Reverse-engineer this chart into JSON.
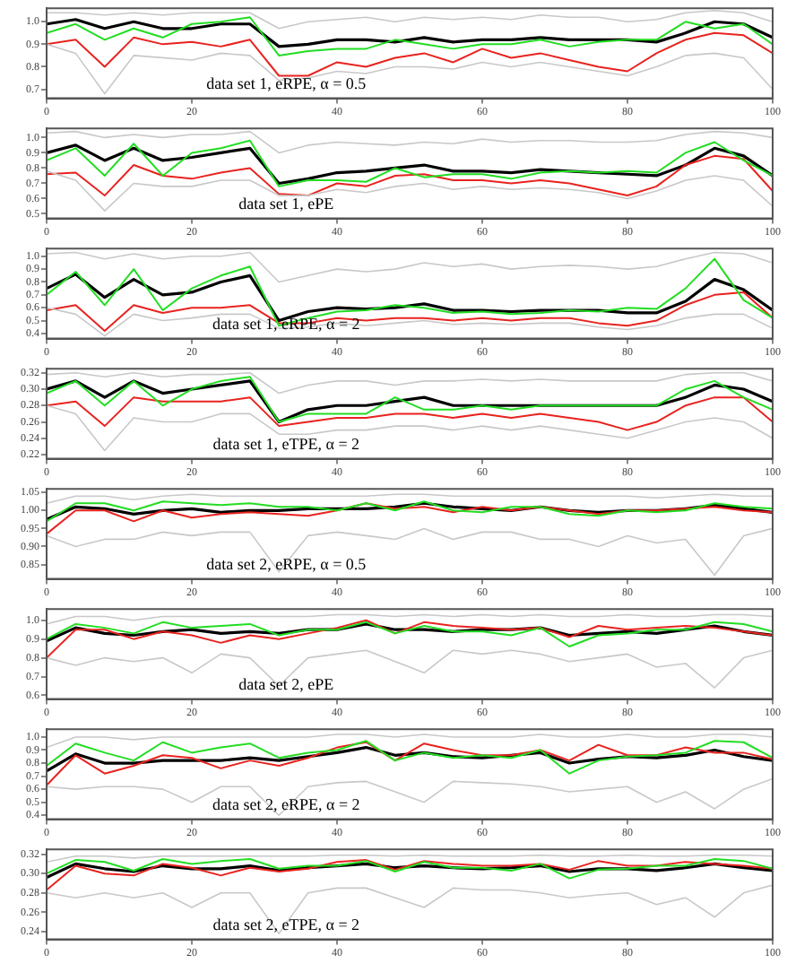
{
  "chart_data": [
    {
      "type": "line",
      "x": [
        0,
        4,
        8,
        12,
        16,
        20,
        24,
        28,
        32,
        36,
        40,
        44,
        48,
        52,
        56,
        60,
        64,
        68,
        72,
        76,
        80,
        84,
        88,
        92,
        96,
        100
      ],
      "xlim": [
        0,
        100
      ],
      "xticks": [
        0,
        20,
        40,
        60,
        80,
        100
      ],
      "ylim": [
        0.66,
        1.06
      ],
      "yticks": [
        0.7,
        0.8,
        0.9,
        {
          "value": 1,
          "label": "1.0"
        }
      ],
      "annotations": [
        "data set 1, eRPE, α = 0.5"
      ],
      "series": [
        {
          "color": "#c8c8c8",
          "values": [
            1.04,
            1.04,
            1.03,
            1.04,
            1.03,
            1.04,
            1.04,
            1.04,
            0.97,
            1.0,
            1.01,
            1.02,
            1.0,
            1.02,
            1.01,
            1.02,
            1.01,
            1.03,
            1.02,
            1.02,
            1.0,
            1.01,
            1.04,
            1.05,
            1.04,
            1.0
          ]
        },
        {
          "color": "#c8c8c8",
          "values": [
            0.9,
            0.86,
            0.68,
            0.85,
            0.84,
            0.83,
            0.86,
            0.85,
            0.74,
            0.75,
            0.78,
            0.77,
            0.8,
            0.8,
            0.79,
            0.82,
            0.8,
            0.82,
            0.8,
            0.78,
            0.76,
            0.8,
            0.85,
            0.86,
            0.84,
            0.7
          ]
        },
        {
          "color": "#22dd22",
          "values": [
            0.95,
            0.99,
            0.92,
            0.97,
            0.93,
            0.99,
            1.0,
            1.02,
            0.85,
            0.87,
            0.88,
            0.88,
            0.92,
            0.9,
            0.88,
            0.9,
            0.9,
            0.92,
            0.89,
            0.91,
            0.92,
            0.92,
            1.0,
            0.97,
            0.99,
            0.9
          ]
        },
        {
          "color": "#e8231f",
          "values": [
            0.9,
            0.92,
            0.8,
            0.93,
            0.9,
            0.91,
            0.89,
            0.92,
            0.76,
            0.76,
            0.82,
            0.8,
            0.84,
            0.86,
            0.82,
            0.88,
            0.84,
            0.86,
            0.83,
            0.8,
            0.78,
            0.86,
            0.92,
            0.95,
            0.94,
            0.86
          ]
        },
        {
          "color": "#000000",
          "values": [
            0.99,
            1.01,
            0.97,
            1.0,
            0.97,
            0.97,
            0.99,
            0.99,
            0.89,
            0.9,
            0.92,
            0.92,
            0.91,
            0.93,
            0.91,
            0.92,
            0.92,
            0.93,
            0.92,
            0.92,
            0.92,
            0.91,
            0.95,
            1.0,
            0.99,
            0.93
          ]
        }
      ]
    },
    {
      "type": "line",
      "x": [
        0,
        4,
        8,
        12,
        16,
        20,
        24,
        28,
        32,
        36,
        40,
        44,
        48,
        52,
        56,
        60,
        64,
        68,
        72,
        76,
        80,
        84,
        88,
        92,
        96,
        100
      ],
      "xlim": [
        0,
        100
      ],
      "xticks": [
        0,
        20,
        40,
        60,
        80,
        100
      ],
      "ylim": [
        0.47,
        1.06
      ],
      "yticks": [
        0.5,
        0.6,
        0.7,
        0.8,
        0.9,
        {
          "value": 1,
          "label": "1.0"
        }
      ],
      "annotations": [
        "data set 1, ePE"
      ],
      "series": [
        {
          "color": "#c8c8c8",
          "values": [
            1.03,
            1.04,
            1.0,
            1.02,
            1.0,
            1.02,
            1.02,
            1.04,
            0.9,
            0.95,
            0.97,
            0.96,
            0.95,
            0.97,
            0.96,
            0.99,
            0.97,
            0.98,
            0.98,
            0.97,
            0.97,
            0.98,
            1.02,
            1.04,
            1.03,
            1.0
          ]
        },
        {
          "color": "#c8c8c8",
          "values": [
            0.78,
            0.72,
            0.52,
            0.7,
            0.68,
            0.68,
            0.72,
            0.72,
            0.62,
            0.62,
            0.66,
            0.64,
            0.68,
            0.7,
            0.66,
            0.68,
            0.66,
            0.67,
            0.66,
            0.64,
            0.6,
            0.65,
            0.72,
            0.75,
            0.72,
            0.55
          ]
        },
        {
          "color": "#22dd22",
          "values": [
            0.85,
            0.93,
            0.75,
            0.96,
            0.75,
            0.9,
            0.93,
            0.98,
            0.68,
            0.72,
            0.72,
            0.71,
            0.8,
            0.74,
            0.76,
            0.76,
            0.73,
            0.77,
            0.78,
            0.77,
            0.78,
            0.77,
            0.9,
            0.97,
            0.85,
            0.75
          ]
        },
        {
          "color": "#e8231f",
          "values": [
            0.76,
            0.77,
            0.62,
            0.82,
            0.75,
            0.73,
            0.77,
            0.8,
            0.63,
            0.62,
            0.7,
            0.68,
            0.75,
            0.76,
            0.72,
            0.72,
            0.7,
            0.72,
            0.7,
            0.66,
            0.62,
            0.68,
            0.82,
            0.88,
            0.86,
            0.65
          ]
        },
        {
          "color": "#000000",
          "values": [
            0.9,
            0.95,
            0.85,
            0.93,
            0.85,
            0.87,
            0.9,
            0.93,
            0.7,
            0.73,
            0.77,
            0.78,
            0.8,
            0.82,
            0.78,
            0.78,
            0.77,
            0.79,
            0.78,
            0.77,
            0.76,
            0.75,
            0.82,
            0.93,
            0.88,
            0.75
          ]
        }
      ]
    },
    {
      "type": "line",
      "x": [
        0,
        4,
        8,
        12,
        16,
        20,
        24,
        28,
        32,
        36,
        40,
        44,
        48,
        52,
        56,
        60,
        64,
        68,
        72,
        76,
        80,
        84,
        88,
        92,
        96,
        100
      ],
      "xlim": [
        0,
        100
      ],
      "xticks": [
        0,
        20,
        40,
        60,
        80,
        100
      ],
      "ylim": [
        0.36,
        1.06
      ],
      "yticks": [
        0.4,
        0.5,
        0.6,
        0.7,
        0.8,
        0.9,
        {
          "value": 1,
          "label": "1.0"
        }
      ],
      "annotations": [
        "data set 1, eRPE, α = 2"
      ],
      "series": [
        {
          "color": "#c8c8c8",
          "values": [
            1.02,
            1.03,
            0.98,
            1.02,
            0.98,
            1.0,
            1.0,
            1.03,
            0.8,
            0.85,
            0.9,
            0.88,
            0.9,
            0.95,
            0.92,
            0.94,
            0.9,
            0.92,
            0.93,
            0.92,
            0.9,
            0.92,
            0.98,
            1.03,
            1.02,
            0.95
          ]
        },
        {
          "color": "#c8c8c8",
          "values": [
            0.6,
            0.55,
            0.38,
            0.55,
            0.5,
            0.52,
            0.55,
            0.55,
            0.44,
            0.45,
            0.48,
            0.46,
            0.48,
            0.5,
            0.47,
            0.48,
            0.47,
            0.48,
            0.48,
            0.45,
            0.43,
            0.46,
            0.52,
            0.55,
            0.55,
            0.44
          ]
        },
        {
          "color": "#22dd22",
          "values": [
            0.7,
            0.88,
            0.62,
            0.9,
            0.58,
            0.75,
            0.85,
            0.92,
            0.46,
            0.52,
            0.57,
            0.58,
            0.62,
            0.6,
            0.56,
            0.57,
            0.55,
            0.56,
            0.58,
            0.57,
            0.6,
            0.59,
            0.75,
            0.98,
            0.66,
            0.52
          ]
        },
        {
          "color": "#e8231f",
          "values": [
            0.58,
            0.62,
            0.42,
            0.62,
            0.56,
            0.6,
            0.6,
            0.62,
            0.48,
            0.48,
            0.52,
            0.5,
            0.52,
            0.52,
            0.5,
            0.52,
            0.5,
            0.52,
            0.52,
            0.48,
            0.46,
            0.5,
            0.62,
            0.7,
            0.72,
            0.52
          ]
        },
        {
          "color": "#000000",
          "values": [
            0.75,
            0.86,
            0.68,
            0.82,
            0.7,
            0.72,
            0.8,
            0.85,
            0.5,
            0.57,
            0.6,
            0.59,
            0.6,
            0.63,
            0.58,
            0.58,
            0.57,
            0.58,
            0.58,
            0.58,
            0.56,
            0.56,
            0.65,
            0.82,
            0.74,
            0.58
          ]
        }
      ]
    },
    {
      "type": "line",
      "x": [
        0,
        4,
        8,
        12,
        16,
        20,
        24,
        28,
        32,
        36,
        40,
        44,
        48,
        52,
        56,
        60,
        64,
        68,
        72,
        76,
        80,
        84,
        88,
        92,
        96,
        100
      ],
      "xlim": [
        0,
        100
      ],
      "xticks": [
        0,
        20,
        40,
        60,
        80,
        100
      ],
      "ylim": [
        0.215,
        0.325
      ],
      "yticks": [
        0.22,
        0.24,
        0.26,
        0.28,
        {
          "value": 0.3,
          "label": "0.30"
        },
        0.32
      ],
      "annotations": [
        "data set 1, eTPE, α = 2"
      ],
      "series": [
        {
          "color": "#c8c8c8",
          "values": [
            0.318,
            0.32,
            0.315,
            0.32,
            0.315,
            0.318,
            0.318,
            0.32,
            0.295,
            0.305,
            0.31,
            0.31,
            0.305,
            0.31,
            0.31,
            0.312,
            0.31,
            0.312,
            0.31,
            0.31,
            0.31,
            0.31,
            0.318,
            0.32,
            0.32,
            0.31
          ]
        },
        {
          "color": "#c8c8c8",
          "values": [
            0.28,
            0.27,
            0.225,
            0.265,
            0.26,
            0.26,
            0.27,
            0.27,
            0.245,
            0.245,
            0.25,
            0.25,
            0.255,
            0.255,
            0.25,
            0.255,
            0.25,
            0.255,
            0.25,
            0.245,
            0.24,
            0.25,
            0.26,
            0.265,
            0.26,
            0.24
          ]
        },
        {
          "color": "#22dd22",
          "values": [
            0.295,
            0.31,
            0.28,
            0.31,
            0.28,
            0.3,
            0.31,
            0.315,
            0.26,
            0.27,
            0.27,
            0.27,
            0.29,
            0.275,
            0.275,
            0.28,
            0.275,
            0.28,
            0.28,
            0.28,
            0.28,
            0.28,
            0.3,
            0.31,
            0.29,
            0.275
          ]
        },
        {
          "color": "#e8231f",
          "values": [
            0.28,
            0.285,
            0.255,
            0.29,
            0.285,
            0.285,
            0.285,
            0.29,
            0.255,
            0.26,
            0.265,
            0.265,
            0.27,
            0.27,
            0.265,
            0.27,
            0.265,
            0.27,
            0.265,
            0.26,
            0.25,
            0.26,
            0.28,
            0.29,
            0.29,
            0.26
          ]
        },
        {
          "color": "#000000",
          "values": [
            0.3,
            0.31,
            0.29,
            0.31,
            0.295,
            0.3,
            0.305,
            0.31,
            0.26,
            0.275,
            0.28,
            0.28,
            0.285,
            0.29,
            0.28,
            0.28,
            0.28,
            0.28,
            0.28,
            0.28,
            0.28,
            0.28,
            0.29,
            0.305,
            0.3,
            0.285
          ]
        }
      ]
    },
    {
      "type": "line",
      "x": [
        0,
        4,
        8,
        12,
        16,
        20,
        24,
        28,
        32,
        36,
        40,
        44,
        48,
        52,
        56,
        60,
        64,
        68,
        72,
        76,
        80,
        84,
        88,
        92,
        96,
        100
      ],
      "xlim": [
        0,
        100
      ],
      "xticks": [
        0,
        20,
        40,
        60,
        80,
        100
      ],
      "ylim": [
        0.81,
        1.06
      ],
      "yticks": [
        0.85,
        {
          "value": 0.9,
          "label": "0.90"
        },
        0.95,
        {
          "value": 1,
          "label": "1.00"
        },
        1.05
      ],
      "annotations": [
        "data set 2, eRPE, α = 0.5"
      ],
      "series": [
        {
          "color": "#c8c8c8",
          "values": [
            1.02,
            1.04,
            1.04,
            1.03,
            1.04,
            1.045,
            1.04,
            1.04,
            1.04,
            1.04,
            1.04,
            1.04,
            1.045,
            1.045,
            1.04,
            1.04,
            1.04,
            1.04,
            1.04,
            1.04,
            1.04,
            1.035,
            1.04,
            1.045,
            1.04,
            1.04
          ]
        },
        {
          "color": "#c8c8c8",
          "values": [
            0.93,
            0.9,
            0.92,
            0.92,
            0.94,
            0.93,
            0.94,
            0.94,
            0.83,
            0.93,
            0.94,
            0.93,
            0.92,
            0.95,
            0.92,
            0.94,
            0.94,
            0.92,
            0.92,
            0.9,
            0.93,
            0.91,
            0.92,
            0.82,
            0.93,
            0.95
          ]
        },
        {
          "color": "#22dd22",
          "values": [
            0.97,
            1.02,
            1.02,
            1.0,
            1.025,
            1.02,
            1.015,
            1.02,
            1.01,
            1.01,
            1.0,
            1.02,
            1.0,
            1.025,
            1.0,
            0.995,
            1.01,
            1.01,
            0.99,
            0.985,
            1.0,
            0.995,
            1.0,
            1.02,
            1.01,
            1.005
          ]
        },
        {
          "color": "#e8231f",
          "values": [
            0.935,
            1.0,
            1.0,
            0.97,
            1.0,
            0.98,
            0.99,
            0.995,
            0.99,
            0.985,
            1.0,
            1.02,
            1.005,
            1.01,
            0.995,
            1.01,
            1.0,
            1.01,
            1.0,
            0.99,
            1.0,
            1.0,
            1.005,
            1.01,
            1.0,
            0.995
          ]
        },
        {
          "color": "#000000",
          "values": [
            0.975,
            1.01,
            1.005,
            0.99,
            1.0,
            1.005,
            0.995,
            1.0,
            1.0,
            1.005,
            1.005,
            1.005,
            1.01,
            1.02,
            1.01,
            1.005,
            1.0,
            1.01,
            1.0,
            0.995,
            1.0,
            1.0,
            1.005,
            1.015,
            1.005,
            0.995
          ]
        }
      ]
    },
    {
      "type": "line",
      "x": [
        0,
        4,
        8,
        12,
        16,
        20,
        24,
        28,
        32,
        36,
        40,
        44,
        48,
        52,
        56,
        60,
        64,
        68,
        72,
        76,
        80,
        84,
        88,
        92,
        96,
        100
      ],
      "xlim": [
        0,
        100
      ],
      "xticks": [
        0,
        20,
        40,
        60,
        80,
        100
      ],
      "ylim": [
        0.58,
        1.06
      ],
      "yticks": [
        0.6,
        0.7,
        0.8,
        0.9,
        {
          "value": 1,
          "label": "1.0"
        }
      ],
      "annotations": [
        "data set 2, ePE"
      ],
      "series": [
        {
          "color": "#c8c8c8",
          "values": [
            0.98,
            1.02,
            1.02,
            1.0,
            1.02,
            1.02,
            1.02,
            1.02,
            1.02,
            1.02,
            1.03,
            1.03,
            1.02,
            1.03,
            1.02,
            1.03,
            1.02,
            1.03,
            1.02,
            1.02,
            1.03,
            1.02,
            1.02,
            1.03,
            1.03,
            1.02
          ]
        },
        {
          "color": "#c8c8c8",
          "values": [
            0.8,
            0.76,
            0.8,
            0.78,
            0.8,
            0.72,
            0.82,
            0.8,
            0.65,
            0.8,
            0.82,
            0.84,
            0.78,
            0.72,
            0.84,
            0.82,
            0.84,
            0.82,
            0.78,
            0.8,
            0.82,
            0.75,
            0.77,
            0.64,
            0.8,
            0.84
          ]
        },
        {
          "color": "#22dd22",
          "values": [
            0.9,
            0.98,
            0.96,
            0.93,
            0.99,
            0.96,
            0.97,
            0.98,
            0.92,
            0.95,
            0.95,
            0.99,
            0.93,
            0.97,
            0.94,
            0.94,
            0.92,
            0.96,
            0.86,
            0.92,
            0.93,
            0.95,
            0.95,
            0.99,
            0.98,
            0.94
          ]
        },
        {
          "color": "#e8231f",
          "values": [
            0.8,
            0.95,
            0.95,
            0.9,
            0.94,
            0.92,
            0.88,
            0.92,
            0.9,
            0.93,
            0.96,
            1.0,
            0.93,
            0.99,
            0.97,
            0.96,
            0.95,
            0.96,
            0.91,
            0.97,
            0.95,
            0.96,
            0.97,
            0.96,
            0.94,
            0.92
          ]
        },
        {
          "color": "#000000",
          "values": [
            0.89,
            0.96,
            0.93,
            0.92,
            0.94,
            0.95,
            0.93,
            0.94,
            0.93,
            0.95,
            0.95,
            0.98,
            0.95,
            0.95,
            0.94,
            0.95,
            0.95,
            0.96,
            0.92,
            0.93,
            0.94,
            0.93,
            0.95,
            0.97,
            0.94,
            0.92
          ]
        }
      ]
    },
    {
      "type": "line",
      "x": [
        0,
        4,
        8,
        12,
        16,
        20,
        24,
        28,
        32,
        36,
        40,
        44,
        48,
        52,
        56,
        60,
        64,
        68,
        72,
        76,
        80,
        84,
        88,
        92,
        96,
        100
      ],
      "xlim": [
        0,
        100
      ],
      "xticks": [
        0,
        20,
        40,
        60,
        80,
        100
      ],
      "ylim": [
        0.37,
        1.06
      ],
      "yticks": [
        0.4,
        0.5,
        0.6,
        0.7,
        0.8,
        0.9,
        {
          "value": 1,
          "label": "1.0"
        }
      ],
      "annotations": [
        "data set 2, eRPE, α = 2"
      ],
      "series": [
        {
          "color": "#c8c8c8",
          "values": [
            0.92,
            1.0,
            1.0,
            0.98,
            1.0,
            1.0,
            1.0,
            1.0,
            1.0,
            1.0,
            1.02,
            1.02,
            1.0,
            1.02,
            1.0,
            1.0,
            1.0,
            1.02,
            1.0,
            1.0,
            1.02,
            1.0,
            1.0,
            1.02,
            1.02,
            1.0
          ]
        },
        {
          "color": "#c8c8c8",
          "values": [
            0.62,
            0.6,
            0.62,
            0.62,
            0.6,
            0.5,
            0.62,
            0.62,
            0.4,
            0.62,
            0.65,
            0.66,
            0.58,
            0.5,
            0.66,
            0.65,
            0.64,
            0.62,
            0.58,
            0.6,
            0.62,
            0.5,
            0.58,
            0.45,
            0.6,
            0.68
          ]
        },
        {
          "color": "#22dd22",
          "values": [
            0.78,
            0.95,
            0.88,
            0.82,
            0.96,
            0.88,
            0.92,
            0.95,
            0.84,
            0.88,
            0.9,
            0.97,
            0.82,
            0.88,
            0.84,
            0.86,
            0.84,
            0.9,
            0.72,
            0.82,
            0.85,
            0.86,
            0.88,
            0.97,
            0.96,
            0.84
          ]
        },
        {
          "color": "#e8231f",
          "values": [
            0.63,
            0.86,
            0.72,
            0.78,
            0.86,
            0.84,
            0.76,
            0.82,
            0.78,
            0.84,
            0.92,
            0.96,
            0.82,
            0.95,
            0.9,
            0.86,
            0.86,
            0.9,
            0.82,
            0.94,
            0.86,
            0.86,
            0.92,
            0.88,
            0.88,
            0.83
          ]
        },
        {
          "color": "#000000",
          "values": [
            0.74,
            0.87,
            0.8,
            0.8,
            0.82,
            0.82,
            0.82,
            0.84,
            0.82,
            0.85,
            0.88,
            0.92,
            0.86,
            0.88,
            0.85,
            0.84,
            0.86,
            0.88,
            0.8,
            0.83,
            0.85,
            0.84,
            0.86,
            0.9,
            0.85,
            0.82
          ]
        }
      ]
    },
    {
      "type": "line",
      "x": [
        0,
        4,
        8,
        12,
        16,
        20,
        24,
        28,
        32,
        36,
        40,
        44,
        48,
        52,
        56,
        60,
        64,
        68,
        72,
        76,
        80,
        84,
        88,
        92,
        96,
        100
      ],
      "xlim": [
        0,
        100
      ],
      "xticks": [
        0,
        20,
        40,
        60,
        80,
        100
      ],
      "ylim": [
        0.232,
        0.325
      ],
      "yticks": [
        0.24,
        0.26,
        0.28,
        {
          "value": 0.3,
          "label": "0.30"
        },
        0.32
      ],
      "annotations": [
        "data set 2, eTPE, α = 2"
      ],
      "series": [
        {
          "color": "#c8c8c8",
          "values": [
            0.312,
            0.318,
            0.318,
            0.316,
            0.318,
            0.318,
            0.318,
            0.318,
            0.318,
            0.318,
            0.319,
            0.319,
            0.318,
            0.319,
            0.318,
            0.318,
            0.318,
            0.319,
            0.318,
            0.318,
            0.319,
            0.318,
            0.318,
            0.319,
            0.319,
            0.318
          ]
        },
        {
          "color": "#c8c8c8",
          "values": [
            0.28,
            0.275,
            0.28,
            0.275,
            0.28,
            0.265,
            0.28,
            0.28,
            0.238,
            0.28,
            0.285,
            0.285,
            0.275,
            0.265,
            0.285,
            0.283,
            0.283,
            0.28,
            0.275,
            0.278,
            0.28,
            0.268,
            0.275,
            0.255,
            0.28,
            0.288
          ]
        },
        {
          "color": "#22dd22",
          "values": [
            0.3,
            0.314,
            0.312,
            0.303,
            0.315,
            0.31,
            0.313,
            0.315,
            0.305,
            0.308,
            0.308,
            0.313,
            0.302,
            0.312,
            0.306,
            0.306,
            0.303,
            0.31,
            0.295,
            0.304,
            0.305,
            0.308,
            0.308,
            0.315,
            0.313,
            0.305
          ]
        },
        {
          "color": "#e8231f",
          "values": [
            0.283,
            0.308,
            0.3,
            0.298,
            0.31,
            0.306,
            0.298,
            0.306,
            0.302,
            0.305,
            0.312,
            0.314,
            0.304,
            0.313,
            0.31,
            0.308,
            0.308,
            0.31,
            0.304,
            0.313,
            0.308,
            0.308,
            0.312,
            0.31,
            0.308,
            0.305
          ]
        },
        {
          "color": "#000000",
          "values": [
            0.296,
            0.31,
            0.305,
            0.302,
            0.308,
            0.305,
            0.305,
            0.308,
            0.303,
            0.306,
            0.308,
            0.31,
            0.306,
            0.308,
            0.306,
            0.305,
            0.306,
            0.308,
            0.302,
            0.305,
            0.305,
            0.303,
            0.306,
            0.31,
            0.306,
            0.303
          ]
        }
      ]
    }
  ]
}
